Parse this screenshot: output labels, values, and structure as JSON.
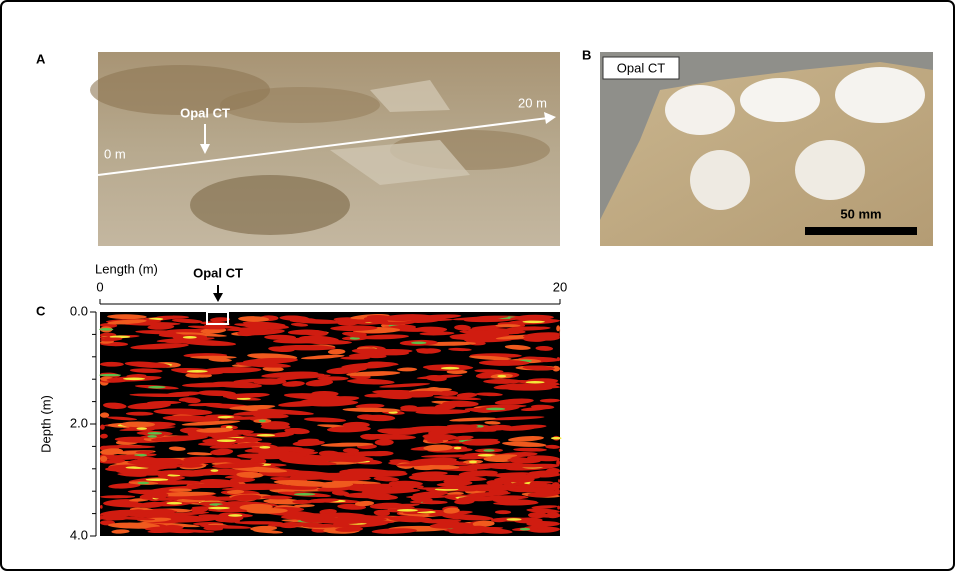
{
  "panels": {
    "a": {
      "label": "A",
      "annotation": "Opal CT",
      "start_label": "0 m",
      "end_label": "20 m"
    },
    "b": {
      "label": "B",
      "annotation": "Opal CT",
      "scale_label": "50 mm"
    },
    "c": {
      "label": "C",
      "annotation": "Opal CT"
    }
  },
  "chart_data": {
    "type": "radargram",
    "xlabel": "Length (m)",
    "ylabel": "Depth (m)",
    "xlim": [
      0,
      20
    ],
    "xticks": [
      0,
      20
    ],
    "ylim": [
      0,
      4
    ],
    "reverse_y": true,
    "yticks": [
      {
        "value": 0,
        "label": "0.0"
      },
      {
        "value": 2,
        "label": "2.0"
      },
      {
        "value": 4,
        "label": "4.0"
      }
    ],
    "minor_yticks": [
      0.4,
      0.8,
      1.2,
      1.6,
      2.4,
      2.8,
      3.2,
      3.6
    ]
  }
}
